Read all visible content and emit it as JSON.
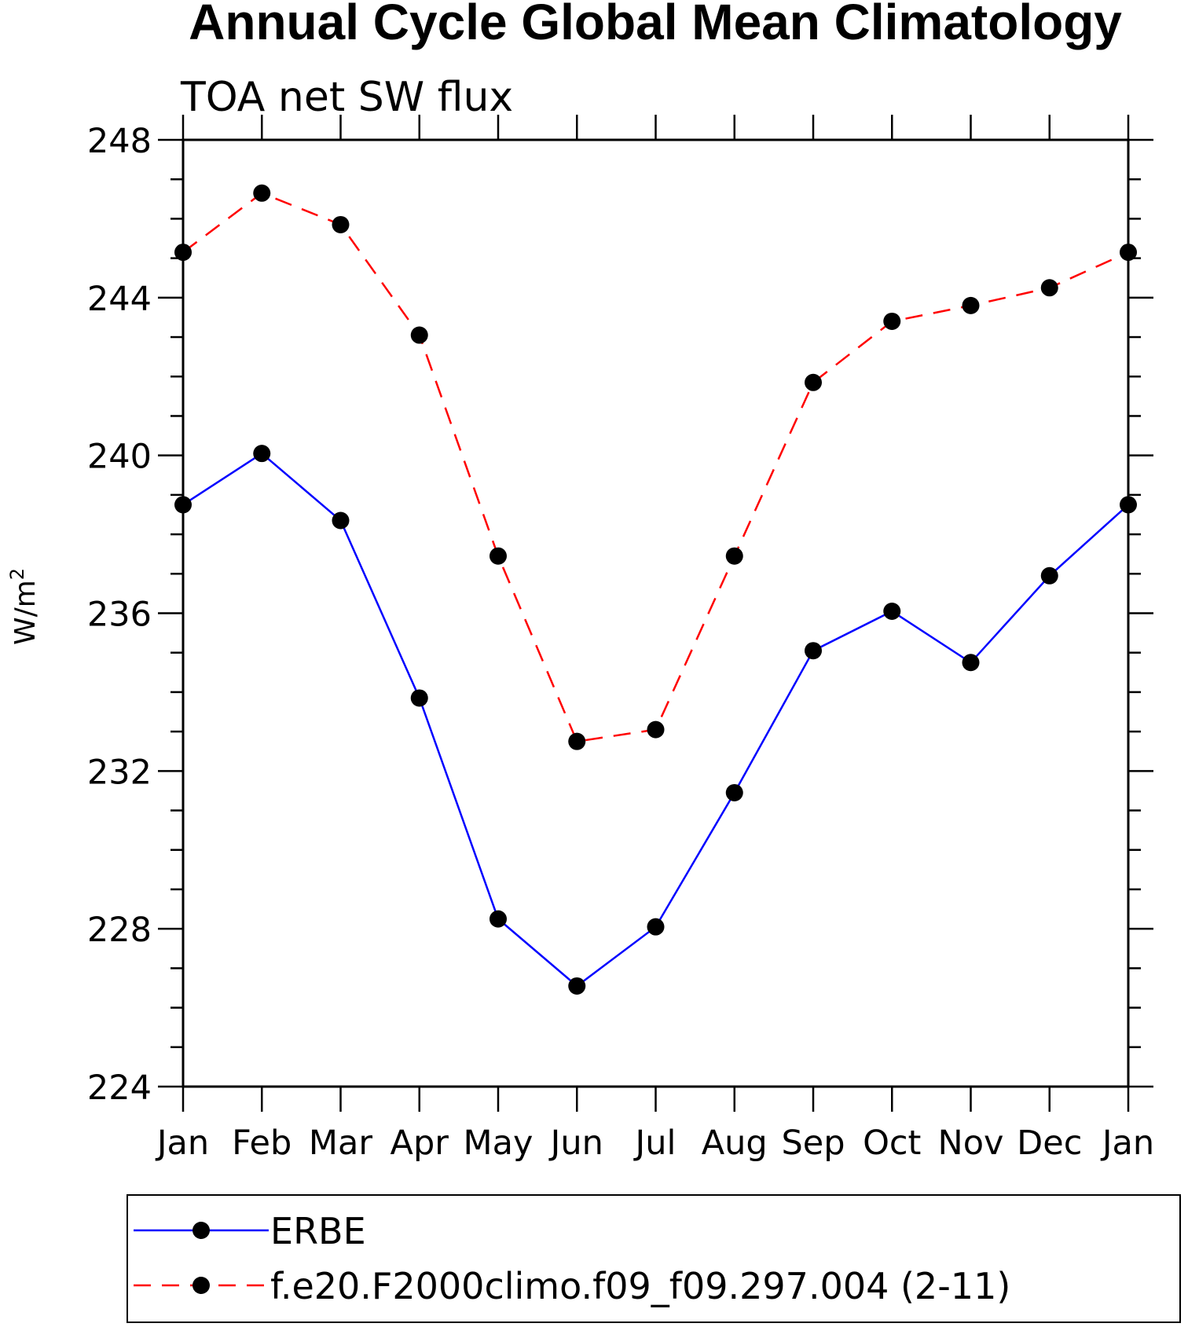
{
  "chart_data": {
    "type": "line",
    "title": "Annual Cycle Global Mean Climatology",
    "subtitle": "TOA net SW flux",
    "ylabel_base": "W/m",
    "ylabel_sup": "2",
    "xlabel": "",
    "categories": [
      "Jan",
      "Feb",
      "Mar",
      "Apr",
      "May",
      "Jun",
      "Jul",
      "Aug",
      "Sep",
      "Oct",
      "Nov",
      "Dec",
      "Jan"
    ],
    "ylim": [
      224,
      248
    ],
    "yticks": [
      224,
      228,
      232,
      236,
      240,
      244,
      248
    ],
    "y_minor_step": 1,
    "series": [
      {
        "name": "ERBE",
        "color": "#0000ff",
        "dash": "solid",
        "values": [
          238.75,
          240.05,
          238.35,
          233.85,
          228.25,
          226.55,
          228.05,
          231.45,
          235.05,
          236.05,
          234.75,
          236.95,
          238.75
        ]
      },
      {
        "name": "f.e20.F2000climo.f09_f09.297.004 (2-11)",
        "color": "#ff0000",
        "dash": "dashed",
        "values": [
          245.15,
          246.65,
          245.85,
          243.05,
          237.45,
          232.75,
          233.05,
          237.45,
          241.85,
          243.4,
          243.8,
          244.25,
          245.15
        ]
      }
    ],
    "marker": "filled-circle",
    "marker_color": "#000000",
    "legend_position": "bottom"
  }
}
